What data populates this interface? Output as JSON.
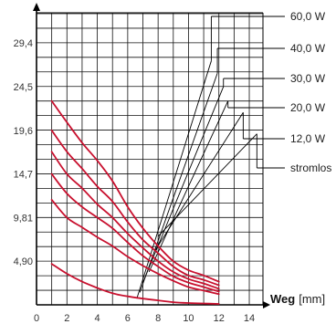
{
  "chart_data": {
    "type": "line",
    "title": "",
    "xlabel": "Weg",
    "xlabel_unit": "[mm]",
    "ylabel": "",
    "xlim": [
      0,
      14.9
    ],
    "ylim": [
      0,
      32.8
    ],
    "grid": true,
    "x_ticks": [
      "0",
      "2",
      "4",
      "6",
      "8",
      "10",
      "12",
      "14"
    ],
    "y_ticks": [
      {
        "value": 4.9,
        "label": "4,90"
      },
      {
        "value": 9.81,
        "label": "9,81"
      },
      {
        "value": 14.7,
        "label": "14,7"
      },
      {
        "value": 19.6,
        "label": "19,6"
      },
      {
        "value": 24.5,
        "label": "24,5"
      },
      {
        "value": 29.4,
        "label": "29,4"
      }
    ],
    "line_color": "#c8102e",
    "series": [
      {
        "name": "60,0 W",
        "x": [
          1,
          2,
          3,
          4,
          5,
          6,
          7,
          8,
          9,
          10,
          11,
          12
        ],
        "y": [
          22.9,
          20.5,
          18.2,
          16.2,
          13.9,
          11.0,
          8.6,
          6.6,
          4.9,
          3.9,
          3.3,
          2.6
        ]
      },
      {
        "name": "40,0 W",
        "x": [
          1,
          2,
          3,
          4,
          5,
          6,
          7,
          8,
          9,
          10,
          11,
          12
        ],
        "y": [
          19.6,
          17.2,
          15.3,
          13.3,
          11.6,
          9.3,
          7.3,
          5.8,
          4.3,
          3.3,
          2.8,
          2.2
        ]
      },
      {
        "name": "30,0 W",
        "x": [
          1,
          2,
          3,
          4,
          5,
          6,
          7,
          8,
          9,
          10,
          11,
          12
        ],
        "y": [
          17.2,
          14.7,
          13.1,
          11.3,
          9.8,
          8.0,
          6.4,
          4.9,
          3.7,
          2.9,
          2.4,
          1.8
        ]
      },
      {
        "name": "20,0 W",
        "x": [
          1,
          2,
          3,
          4,
          5,
          6,
          7,
          8,
          9,
          10,
          11,
          12
        ],
        "y": [
          14.7,
          12.5,
          11.0,
          9.8,
          8.6,
          7.0,
          5.5,
          4.3,
          3.2,
          2.5,
          2.0,
          1.5
        ]
      },
      {
        "name": "12,0 W",
        "x": [
          1,
          2,
          3,
          4,
          5,
          6,
          7,
          8,
          9,
          10,
          11,
          12
        ],
        "y": [
          11.8,
          9.8,
          8.7,
          7.6,
          6.6,
          5.4,
          4.4,
          3.5,
          2.7,
          2.0,
          1.6,
          1.2
        ]
      },
      {
        "name": "stromlos",
        "x": [
          1,
          2,
          3,
          4,
          5,
          6,
          7,
          8,
          9,
          10,
          11,
          12
        ],
        "y": [
          4.6,
          3.5,
          2.6,
          1.9,
          1.3,
          0.95,
          0.7,
          0.5,
          0.3,
          0.2,
          0.15,
          0.1
        ]
      }
    ],
    "legend_leaders": [
      {
        "series": "60,0 W",
        "from": [
          6.6,
          0.7
        ],
        "to": [
          11.5,
          27.4
        ]
      },
      {
        "series": "40,0 W",
        "from": [
          6.8,
          1.4
        ],
        "to": [
          11.9,
          26.0
        ]
      },
      {
        "series": "30,0 W",
        "from": [
          7.0,
          2.5
        ],
        "to": [
          12.3,
          24.5
        ]
      },
      {
        "series": "20,0 W",
        "from": [
          7.4,
          3.7
        ],
        "to": [
          12.6,
          22.9
        ]
      },
      {
        "series": "12,0 W",
        "from": [
          7.8,
          6.1
        ],
        "to": [
          13.6,
          21.6
        ]
      },
      {
        "series": "stromlos",
        "from": [
          8.0,
          7.7
        ],
        "to": [
          14.5,
          19.2
        ]
      }
    ],
    "legend_placement": "right"
  }
}
